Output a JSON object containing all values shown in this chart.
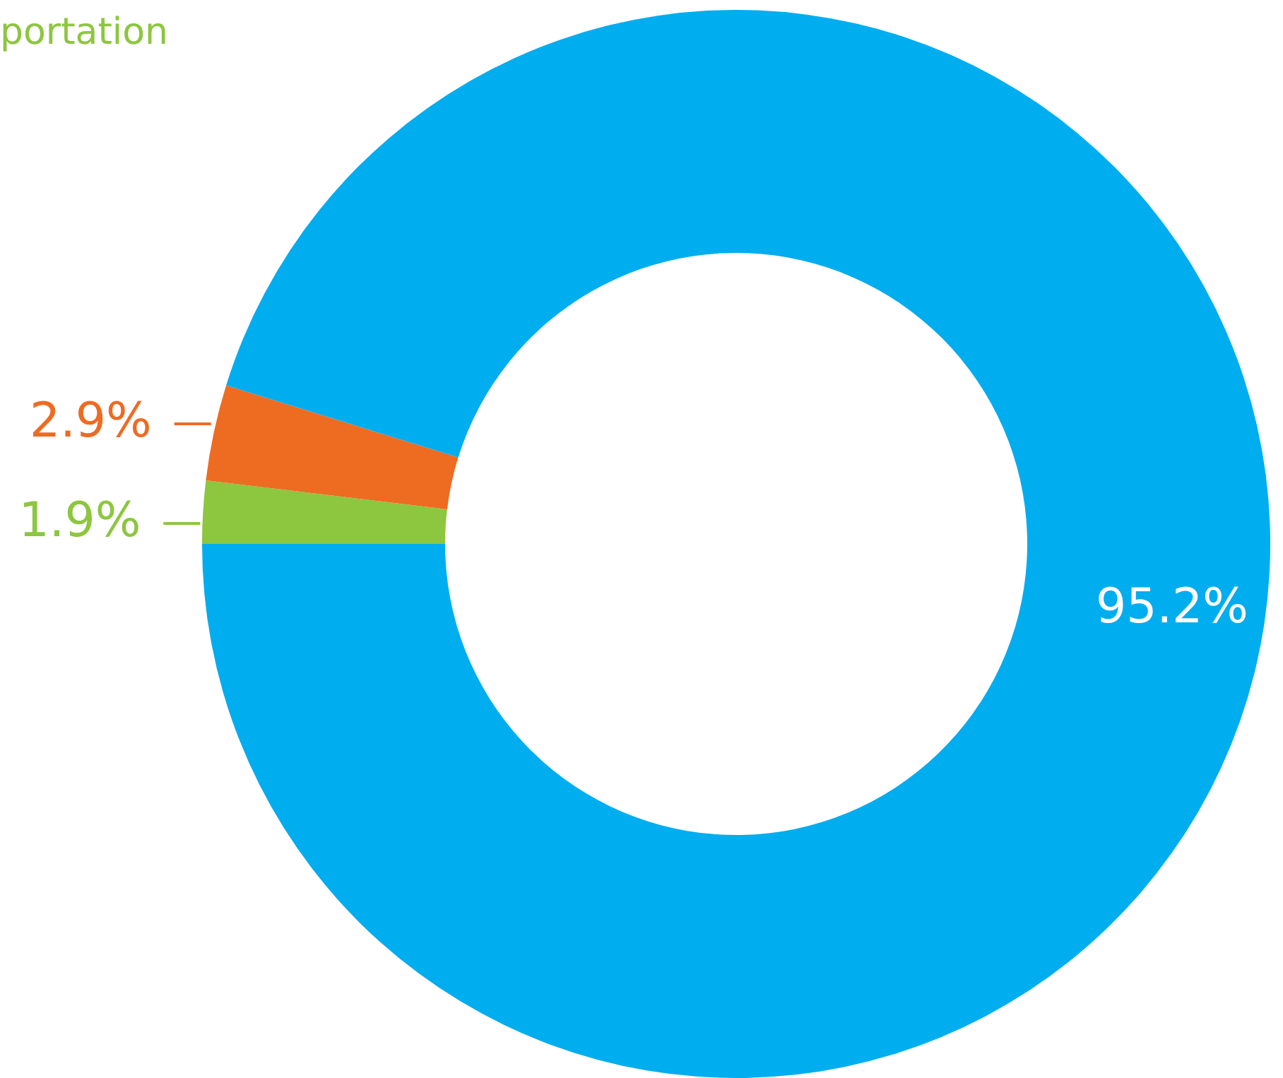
{
  "chart_data": {
    "type": "donut",
    "categories": [
      null,
      null,
      null
    ],
    "annotations": [
      "portation"
    ],
    "values": [
      1.9,
      2.9,
      95.2
    ],
    "colors": [
      "#8dc63f",
      "#ee6b22",
      "#00adef"
    ],
    "value_labels": [
      "1.9%",
      "2.9%",
      "95.2%"
    ],
    "legend": false
  }
}
